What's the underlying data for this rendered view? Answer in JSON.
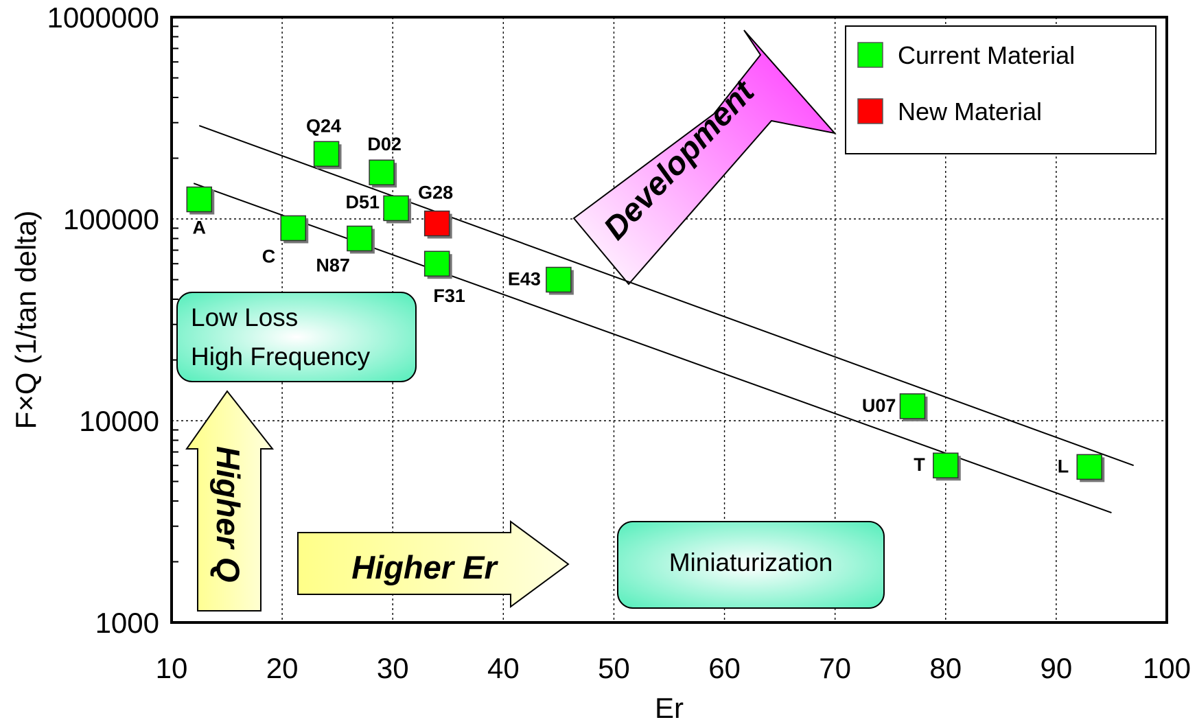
{
  "chart_data": {
    "type": "scatter",
    "xlabel": "Er",
    "ylabel": "F×Q (1/tan delta)",
    "xlim": [
      10,
      100
    ],
    "ylim": [
      1000,
      1000000
    ],
    "yscale": "log",
    "grid": true,
    "x_ticks": [
      10,
      20,
      30,
      40,
      50,
      60,
      70,
      80,
      90,
      100
    ],
    "y_ticks": [
      1000,
      10000,
      100000,
      1000000
    ],
    "x_tick_labels": [
      "10",
      "20",
      "30",
      "40",
      "50",
      "60",
      "70",
      "80",
      "90",
      "100"
    ],
    "y_tick_labels": [
      "1000",
      "10000",
      "100000",
      "1000000"
    ],
    "legend": {
      "position": "top-right",
      "entries": [
        {
          "name": "Current Material",
          "color": "#00ff00"
        },
        {
          "name": "New Material",
          "color": "#ff0000"
        }
      ]
    },
    "series": [
      {
        "name": "Current Material",
        "color": "#00ff00",
        "points": [
          {
            "label": "A",
            "x": 12.5,
            "y": 125000
          },
          {
            "label": "C",
            "x": 21,
            "y": 90000
          },
          {
            "label": "Q24",
            "x": 24,
            "y": 210000
          },
          {
            "label": "N87",
            "x": 27,
            "y": 80000
          },
          {
            "label": "D02",
            "x": 29,
            "y": 170000
          },
          {
            "label": "D51",
            "x": 30.3,
            "y": 113000
          },
          {
            "label": "F31",
            "x": 34,
            "y": 60000
          },
          {
            "label": "E43",
            "x": 45,
            "y": 50000
          },
          {
            "label": "U07",
            "x": 77,
            "y": 11800
          },
          {
            "label": "T",
            "x": 80,
            "y": 6000
          },
          {
            "label": "L",
            "x": 93,
            "y": 5900
          }
        ]
      },
      {
        "name": "New Material",
        "color": "#ff0000",
        "points": [
          {
            "label": "G28",
            "x": 34,
            "y": 95000
          }
        ]
      }
    ],
    "trend_lines": [
      {
        "x": [
          12.5,
          97
        ],
        "y": [
          290000,
          6000
        ]
      },
      {
        "x": [
          12,
          95
        ],
        "y": [
          150000,
          3500
        ]
      }
    ],
    "annotations": {
      "low_loss_box": [
        "Low Loss",
        "High Frequency"
      ],
      "miniaturization_box": "Miniaturization",
      "higher_q_arrow": "Higher Q",
      "higher_er_arrow": "Higher Er",
      "development_arrow": "Development"
    },
    "colors": {
      "current": "#00ff00",
      "new": "#ff0000",
      "new_label": "#ff0000",
      "arrow_yellow": "#ffff99",
      "box_teal": "#66eebb",
      "arrow_magenta": "#ff44ff"
    }
  }
}
